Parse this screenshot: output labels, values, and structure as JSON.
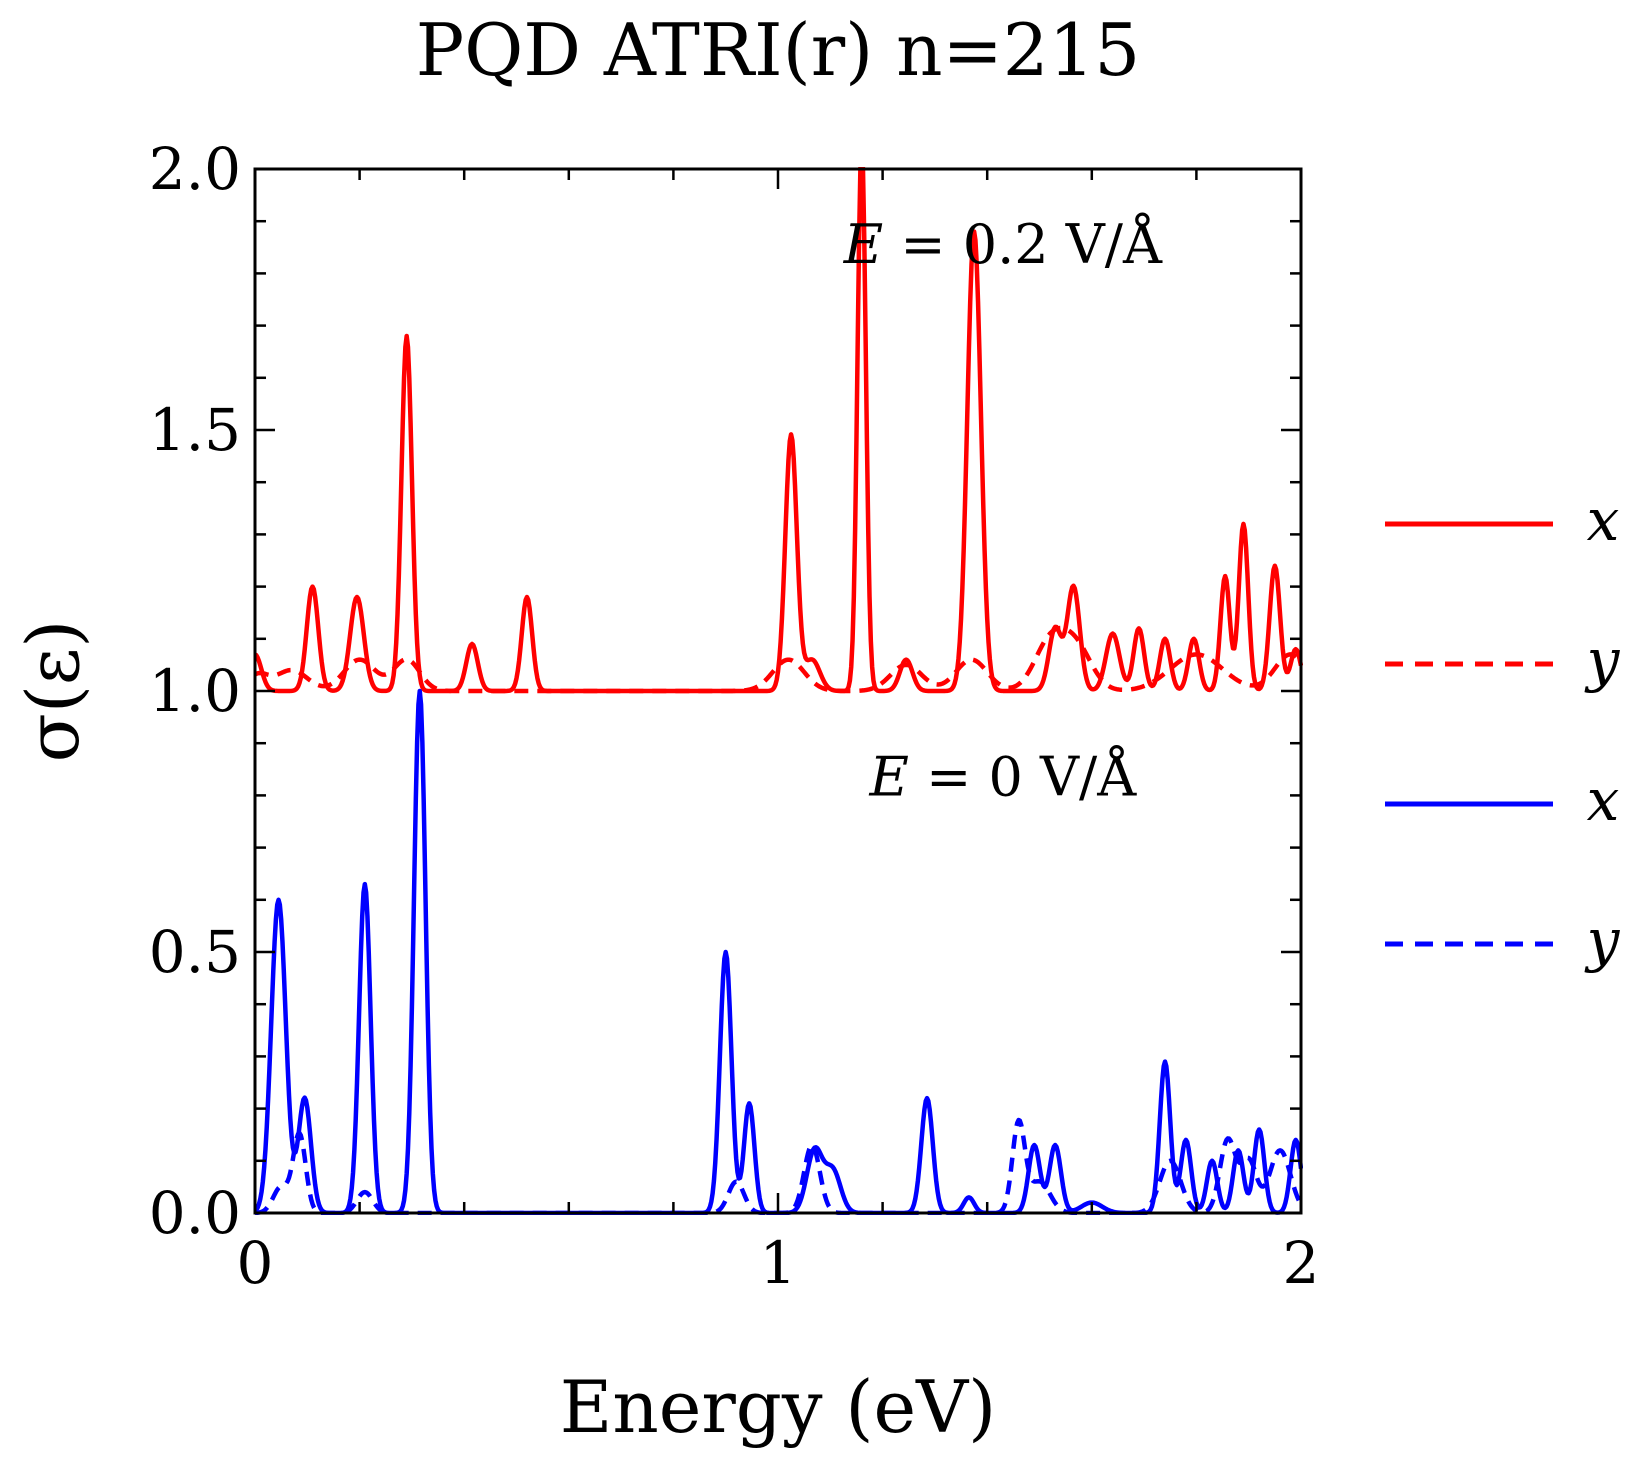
{
  "chart_data": {
    "type": "line",
    "title": "PQD ATRI(r) n=215",
    "xlabel": "Energy (eV)",
    "ylabel": "σ(ε)",
    "xlim": [
      0,
      2
    ],
    "ylim": [
      0,
      2
    ],
    "x_ticks": [
      0,
      1,
      2
    ],
    "x_tick_labels": [
      "0",
      "1",
      "2"
    ],
    "y_ticks": [
      0,
      0.5,
      1,
      1.5,
      2
    ],
    "y_tick_labels": [
      "0.0",
      "0.5",
      "1.0",
      "1.5",
      "2.0"
    ],
    "grid": false,
    "legend_position": "outside-right",
    "annotations": [
      {
        "text": "E = 0.2 V/Å",
        "italic_var": "E",
        "rest": " = 0.2 V/Å",
        "x": 1.43,
        "y": 1.82
      },
      {
        "text": "E = 0 V/Å",
        "italic_var": "E",
        "rest": " = 0 V/Å",
        "x": 1.43,
        "y": 0.8
      }
    ],
    "series": [
      {
        "name": "x",
        "field": "E = 0.2 V/Å",
        "color": "#ff0000",
        "dash": "solid",
        "offset": 1.0,
        "peaks": [
          [
            0.0,
            0.07,
            0.012
          ],
          [
            0.11,
            0.2,
            0.011
          ],
          [
            0.195,
            0.18,
            0.013
          ],
          [
            0.29,
            0.68,
            0.01
          ],
          [
            0.415,
            0.09,
            0.011
          ],
          [
            0.52,
            0.18,
            0.01
          ],
          [
            1.025,
            0.49,
            0.011
          ],
          [
            1.065,
            0.06,
            0.015
          ],
          [
            1.16,
            1.05,
            0.008
          ],
          [
            1.245,
            0.06,
            0.012
          ],
          [
            1.375,
            0.88,
            0.013
          ],
          [
            1.53,
            0.12,
            0.012
          ],
          [
            1.565,
            0.2,
            0.012
          ],
          [
            1.64,
            0.11,
            0.013
          ],
          [
            1.69,
            0.12,
            0.01
          ],
          [
            1.74,
            0.1,
            0.01
          ],
          [
            1.795,
            0.1,
            0.01
          ],
          [
            1.855,
            0.22,
            0.009
          ],
          [
            1.89,
            0.32,
            0.009
          ],
          [
            1.95,
            0.24,
            0.01
          ],
          [
            1.99,
            0.08,
            0.01
          ]
        ]
      },
      {
        "name": "y",
        "field": "E = 0.2 V/Å",
        "color": "#ff0000",
        "dash": "dashed",
        "offset": 1.0,
        "peaks": [
          [
            0.005,
            0.03,
            0.02
          ],
          [
            0.07,
            0.04,
            0.03
          ],
          [
            0.2,
            0.06,
            0.03
          ],
          [
            0.29,
            0.06,
            0.025
          ],
          [
            1.02,
            0.06,
            0.03
          ],
          [
            1.245,
            0.05,
            0.03
          ],
          [
            1.37,
            0.06,
            0.03
          ],
          [
            1.52,
            0.09,
            0.03
          ],
          [
            1.57,
            0.08,
            0.03
          ],
          [
            1.8,
            0.07,
            0.05
          ],
          [
            1.98,
            0.07,
            0.03
          ]
        ]
      },
      {
        "name": "x",
        "field": "E = 0 V/Å",
        "color": "#0000ff",
        "dash": "solid",
        "offset": 0.0,
        "peaks": [
          [
            0.045,
            0.6,
            0.014
          ],
          [
            0.095,
            0.22,
            0.012
          ],
          [
            0.21,
            0.63,
            0.011
          ],
          [
            0.315,
            1.0,
            0.011
          ],
          [
            0.9,
            0.5,
            0.011
          ],
          [
            0.945,
            0.21,
            0.01
          ],
          [
            1.07,
            0.12,
            0.015
          ],
          [
            1.105,
            0.08,
            0.015
          ],
          [
            1.285,
            0.22,
            0.011
          ],
          [
            1.365,
            0.03,
            0.01
          ],
          [
            1.49,
            0.13,
            0.011
          ],
          [
            1.53,
            0.13,
            0.011
          ],
          [
            1.6,
            0.02,
            0.02
          ],
          [
            1.74,
            0.29,
            0.01
          ],
          [
            1.78,
            0.14,
            0.01
          ],
          [
            1.83,
            0.1,
            0.01
          ],
          [
            1.88,
            0.12,
            0.01
          ],
          [
            1.92,
            0.16,
            0.01
          ],
          [
            1.99,
            0.14,
            0.01
          ]
        ]
      },
      {
        "name": "y",
        "field": "E = 0 V/Å",
        "color": "#0000ff",
        "dash": "dashed",
        "offset": 0.0,
        "peaks": [
          [
            0.085,
            0.15,
            0.012
          ],
          [
            0.05,
            0.05,
            0.015
          ],
          [
            0.21,
            0.04,
            0.015
          ],
          [
            0.92,
            0.06,
            0.015
          ],
          [
            1.065,
            0.13,
            0.015
          ],
          [
            1.46,
            0.17,
            0.012
          ],
          [
            1.5,
            0.06,
            0.02
          ],
          [
            1.75,
            0.1,
            0.02
          ],
          [
            1.86,
            0.14,
            0.015
          ],
          [
            1.9,
            0.1,
            0.015
          ],
          [
            1.96,
            0.12,
            0.02
          ]
        ]
      }
    ]
  }
}
